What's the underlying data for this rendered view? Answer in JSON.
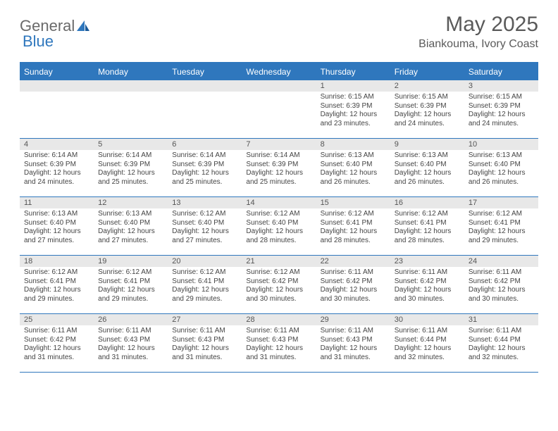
{
  "logo": {
    "text1": "General",
    "text2": "Blue"
  },
  "title": "May 2025",
  "location": "Biankouma, Ivory Coast",
  "header_bg": "#2f77bd",
  "daynum_bg": "#e8e8e8",
  "dow": [
    "Sunday",
    "Monday",
    "Tuesday",
    "Wednesday",
    "Thursday",
    "Friday",
    "Saturday"
  ],
  "weeks": [
    [
      {
        "day": "",
        "sunrise": "",
        "sunset": "",
        "daylight": ""
      },
      {
        "day": "",
        "sunrise": "",
        "sunset": "",
        "daylight": ""
      },
      {
        "day": "",
        "sunrise": "",
        "sunset": "",
        "daylight": ""
      },
      {
        "day": "",
        "sunrise": "",
        "sunset": "",
        "daylight": ""
      },
      {
        "day": "1",
        "sunrise": "Sunrise: 6:15 AM",
        "sunset": "Sunset: 6:39 PM",
        "daylight": "Daylight: 12 hours and 23 minutes."
      },
      {
        "day": "2",
        "sunrise": "Sunrise: 6:15 AM",
        "sunset": "Sunset: 6:39 PM",
        "daylight": "Daylight: 12 hours and 24 minutes."
      },
      {
        "day": "3",
        "sunrise": "Sunrise: 6:15 AM",
        "sunset": "Sunset: 6:39 PM",
        "daylight": "Daylight: 12 hours and 24 minutes."
      }
    ],
    [
      {
        "day": "4",
        "sunrise": "Sunrise: 6:14 AM",
        "sunset": "Sunset: 6:39 PM",
        "daylight": "Daylight: 12 hours and 24 minutes."
      },
      {
        "day": "5",
        "sunrise": "Sunrise: 6:14 AM",
        "sunset": "Sunset: 6:39 PM",
        "daylight": "Daylight: 12 hours and 25 minutes."
      },
      {
        "day": "6",
        "sunrise": "Sunrise: 6:14 AM",
        "sunset": "Sunset: 6:39 PM",
        "daylight": "Daylight: 12 hours and 25 minutes."
      },
      {
        "day": "7",
        "sunrise": "Sunrise: 6:14 AM",
        "sunset": "Sunset: 6:39 PM",
        "daylight": "Daylight: 12 hours and 25 minutes."
      },
      {
        "day": "8",
        "sunrise": "Sunrise: 6:13 AM",
        "sunset": "Sunset: 6:40 PM",
        "daylight": "Daylight: 12 hours and 26 minutes."
      },
      {
        "day": "9",
        "sunrise": "Sunrise: 6:13 AM",
        "sunset": "Sunset: 6:40 PM",
        "daylight": "Daylight: 12 hours and 26 minutes."
      },
      {
        "day": "10",
        "sunrise": "Sunrise: 6:13 AM",
        "sunset": "Sunset: 6:40 PM",
        "daylight": "Daylight: 12 hours and 26 minutes."
      }
    ],
    [
      {
        "day": "11",
        "sunrise": "Sunrise: 6:13 AM",
        "sunset": "Sunset: 6:40 PM",
        "daylight": "Daylight: 12 hours and 27 minutes."
      },
      {
        "day": "12",
        "sunrise": "Sunrise: 6:13 AM",
        "sunset": "Sunset: 6:40 PM",
        "daylight": "Daylight: 12 hours and 27 minutes."
      },
      {
        "day": "13",
        "sunrise": "Sunrise: 6:12 AM",
        "sunset": "Sunset: 6:40 PM",
        "daylight": "Daylight: 12 hours and 27 minutes."
      },
      {
        "day": "14",
        "sunrise": "Sunrise: 6:12 AM",
        "sunset": "Sunset: 6:40 PM",
        "daylight": "Daylight: 12 hours and 28 minutes."
      },
      {
        "day": "15",
        "sunrise": "Sunrise: 6:12 AM",
        "sunset": "Sunset: 6:41 PM",
        "daylight": "Daylight: 12 hours and 28 minutes."
      },
      {
        "day": "16",
        "sunrise": "Sunrise: 6:12 AM",
        "sunset": "Sunset: 6:41 PM",
        "daylight": "Daylight: 12 hours and 28 minutes."
      },
      {
        "day": "17",
        "sunrise": "Sunrise: 6:12 AM",
        "sunset": "Sunset: 6:41 PM",
        "daylight": "Daylight: 12 hours and 29 minutes."
      }
    ],
    [
      {
        "day": "18",
        "sunrise": "Sunrise: 6:12 AM",
        "sunset": "Sunset: 6:41 PM",
        "daylight": "Daylight: 12 hours and 29 minutes."
      },
      {
        "day": "19",
        "sunrise": "Sunrise: 6:12 AM",
        "sunset": "Sunset: 6:41 PM",
        "daylight": "Daylight: 12 hours and 29 minutes."
      },
      {
        "day": "20",
        "sunrise": "Sunrise: 6:12 AM",
        "sunset": "Sunset: 6:41 PM",
        "daylight": "Daylight: 12 hours and 29 minutes."
      },
      {
        "day": "21",
        "sunrise": "Sunrise: 6:12 AM",
        "sunset": "Sunset: 6:42 PM",
        "daylight": "Daylight: 12 hours and 30 minutes."
      },
      {
        "day": "22",
        "sunrise": "Sunrise: 6:11 AM",
        "sunset": "Sunset: 6:42 PM",
        "daylight": "Daylight: 12 hours and 30 minutes."
      },
      {
        "day": "23",
        "sunrise": "Sunrise: 6:11 AM",
        "sunset": "Sunset: 6:42 PM",
        "daylight": "Daylight: 12 hours and 30 minutes."
      },
      {
        "day": "24",
        "sunrise": "Sunrise: 6:11 AM",
        "sunset": "Sunset: 6:42 PM",
        "daylight": "Daylight: 12 hours and 30 minutes."
      }
    ],
    [
      {
        "day": "25",
        "sunrise": "Sunrise: 6:11 AM",
        "sunset": "Sunset: 6:42 PM",
        "daylight": "Daylight: 12 hours and 31 minutes."
      },
      {
        "day": "26",
        "sunrise": "Sunrise: 6:11 AM",
        "sunset": "Sunset: 6:43 PM",
        "daylight": "Daylight: 12 hours and 31 minutes."
      },
      {
        "day": "27",
        "sunrise": "Sunrise: 6:11 AM",
        "sunset": "Sunset: 6:43 PM",
        "daylight": "Daylight: 12 hours and 31 minutes."
      },
      {
        "day": "28",
        "sunrise": "Sunrise: 6:11 AM",
        "sunset": "Sunset: 6:43 PM",
        "daylight": "Daylight: 12 hours and 31 minutes."
      },
      {
        "day": "29",
        "sunrise": "Sunrise: 6:11 AM",
        "sunset": "Sunset: 6:43 PM",
        "daylight": "Daylight: 12 hours and 31 minutes."
      },
      {
        "day": "30",
        "sunrise": "Sunrise: 6:11 AM",
        "sunset": "Sunset: 6:44 PM",
        "daylight": "Daylight: 12 hours and 32 minutes."
      },
      {
        "day": "31",
        "sunrise": "Sunrise: 6:11 AM",
        "sunset": "Sunset: 6:44 PM",
        "daylight": "Daylight: 12 hours and 32 minutes."
      }
    ]
  ]
}
